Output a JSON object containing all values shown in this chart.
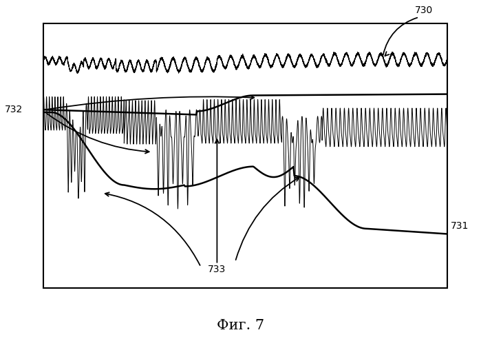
{
  "title": "Фиг. 7",
  "label_730": "730",
  "label_731": "731",
  "label_732": "732",
  "label_733": "733",
  "bg_color": "#ffffff",
  "line_color": "#000000",
  "fig_width": 6.99,
  "fig_height": 4.92,
  "dpi": 100
}
